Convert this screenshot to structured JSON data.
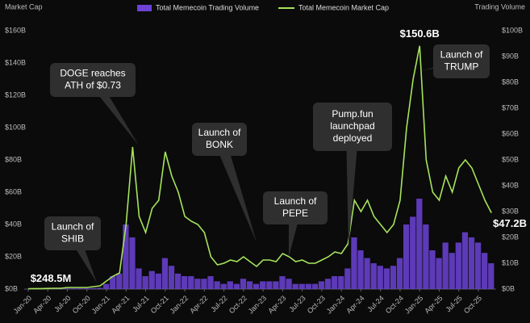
{
  "chart_data": {
    "type": "bar-line",
    "legend": [
      "Total Memecoin Trading Volume",
      "Total Memecoin Market Cap"
    ],
    "ylabel": "Market Cap",
    "y2label": "Trading Volume",
    "categories": [
      "Jan-20",
      null,
      null,
      "Apr-20",
      null,
      null,
      "Jul-20",
      null,
      null,
      "Oct-20",
      null,
      null,
      "Jan-21",
      null,
      null,
      "Apr-21",
      null,
      null,
      "Jul-21",
      null,
      null,
      "Oct-21",
      null,
      null,
      "Jan-22",
      null,
      null,
      "Apr-22",
      null,
      null,
      "Jul-22",
      null,
      null,
      "Oct-22",
      null,
      null,
      "Jan-23",
      null,
      null,
      "Apr-23",
      null,
      null,
      "Jul-23",
      null,
      null,
      "Oct-23",
      null,
      null,
      "Jan-24",
      null,
      null,
      "Apr-24",
      null,
      null,
      "Jul-24",
      null,
      null,
      "Oct-24",
      null,
      null,
      "Jan-25",
      null,
      null,
      "Apr-25",
      null,
      null,
      "Jul-25",
      null,
      null,
      "Oct-25",
      null,
      null
    ],
    "series": [
      {
        "name": "Total Memecoin Trading Volume",
        "color": "#6c43d6",
        "axis": "y2",
        "kind": "bar",
        "values": [
          0.1,
          0.1,
          0.1,
          0.1,
          0.2,
          0.2,
          0.3,
          0.3,
          0.3,
          0.3,
          0.4,
          0.5,
          2,
          5,
          6,
          25,
          20,
          8,
          5,
          7,
          6,
          12,
          9,
          6,
          5,
          5,
          4,
          4,
          5,
          3,
          2,
          3,
          2,
          4,
          3,
          2,
          3,
          3,
          3,
          5,
          4,
          2,
          2,
          2,
          2,
          3,
          4,
          5,
          5,
          8,
          20,
          15,
          12,
          10,
          9,
          8,
          9,
          12,
          25,
          28,
          35,
          25,
          15,
          12,
          18,
          14,
          18,
          22,
          20,
          18,
          14,
          10
        ]
      },
      {
        "name": "Total Memecoin Market Cap",
        "color": "#a6e35c",
        "kind": "line",
        "values": [
          0.2485,
          0.3,
          0.3,
          0.4,
          0.5,
          0.5,
          1,
          1,
          1,
          1,
          1.5,
          2,
          5,
          8,
          10,
          40,
          88,
          45,
          35,
          50,
          55,
          85,
          70,
          60,
          45,
          42,
          40,
          35,
          20,
          15,
          16,
          18,
          17,
          20,
          17,
          14,
          18,
          18,
          17,
          22,
          20,
          17,
          18,
          16,
          16,
          18,
          20,
          23,
          22,
          28,
          55,
          48,
          55,
          45,
          40,
          35,
          40,
          55,
          100,
          130,
          150.6,
          80,
          60,
          55,
          70,
          60,
          75,
          80,
          75,
          65,
          55,
          47.2
        ],
        "value_labels": [
          "$248.5M",
          null,
          null,
          null,
          null,
          null,
          null,
          null,
          null,
          null,
          null,
          null,
          null,
          null,
          null,
          null,
          null,
          null,
          null,
          null,
          null,
          null,
          null,
          null,
          null,
          null,
          null,
          null,
          null,
          null,
          null,
          null,
          null,
          null,
          null,
          null,
          null,
          null,
          null,
          null,
          null,
          null,
          null,
          null,
          null,
          null,
          null,
          null,
          null,
          null,
          null,
          null,
          null,
          null,
          null,
          null,
          null,
          null,
          null,
          null,
          "$150.6B",
          null,
          null,
          null,
          null,
          null,
          null,
          null,
          null,
          null,
          null,
          "$47.2B"
        ]
      }
    ],
    "ylim": [
      0,
      160
    ],
    "yticks": [
      {
        "value": 0,
        "label": "$0B"
      },
      {
        "value": 20,
        "label": "$20B"
      },
      {
        "value": 40,
        "label": "$40B"
      },
      {
        "value": 60,
        "label": "$60B"
      },
      {
        "value": 80,
        "label": "$80B"
      },
      {
        "value": 100,
        "label": "$100B"
      },
      {
        "value": 120,
        "label": "$120B"
      },
      {
        "value": 140,
        "label": "$140B"
      },
      {
        "value": 160,
        "label": "$160B"
      }
    ],
    "y2lim": [
      0,
      100
    ],
    "y2ticks": [
      {
        "value": 0,
        "label": "$0B"
      },
      {
        "value": 10,
        "label": "$10B"
      },
      {
        "value": 20,
        "label": "$20B"
      },
      {
        "value": 30,
        "label": "$30B"
      },
      {
        "value": 40,
        "label": "$40B"
      },
      {
        "value": 50,
        "label": "$50B"
      },
      {
        "value": 60,
        "label": "$60B"
      },
      {
        "value": 70,
        "label": "$70B"
      },
      {
        "value": 80,
        "label": "$80B"
      },
      {
        "value": 90,
        "label": "$90B"
      },
      {
        "value": 100,
        "label": "$100B"
      }
    ],
    "annotations": [
      [
        "Launch of",
        "SHIB"
      ],
      [
        "DOGE reaches",
        "ATH of $0.73"
      ],
      [
        "Launch of",
        "BONK"
      ],
      [
        "Launch of",
        "PEPE"
      ],
      [
        "Pump.fun",
        "launchpad",
        "deployed"
      ],
      [
        "Launch of",
        "TRUMP"
      ]
    ]
  }
}
